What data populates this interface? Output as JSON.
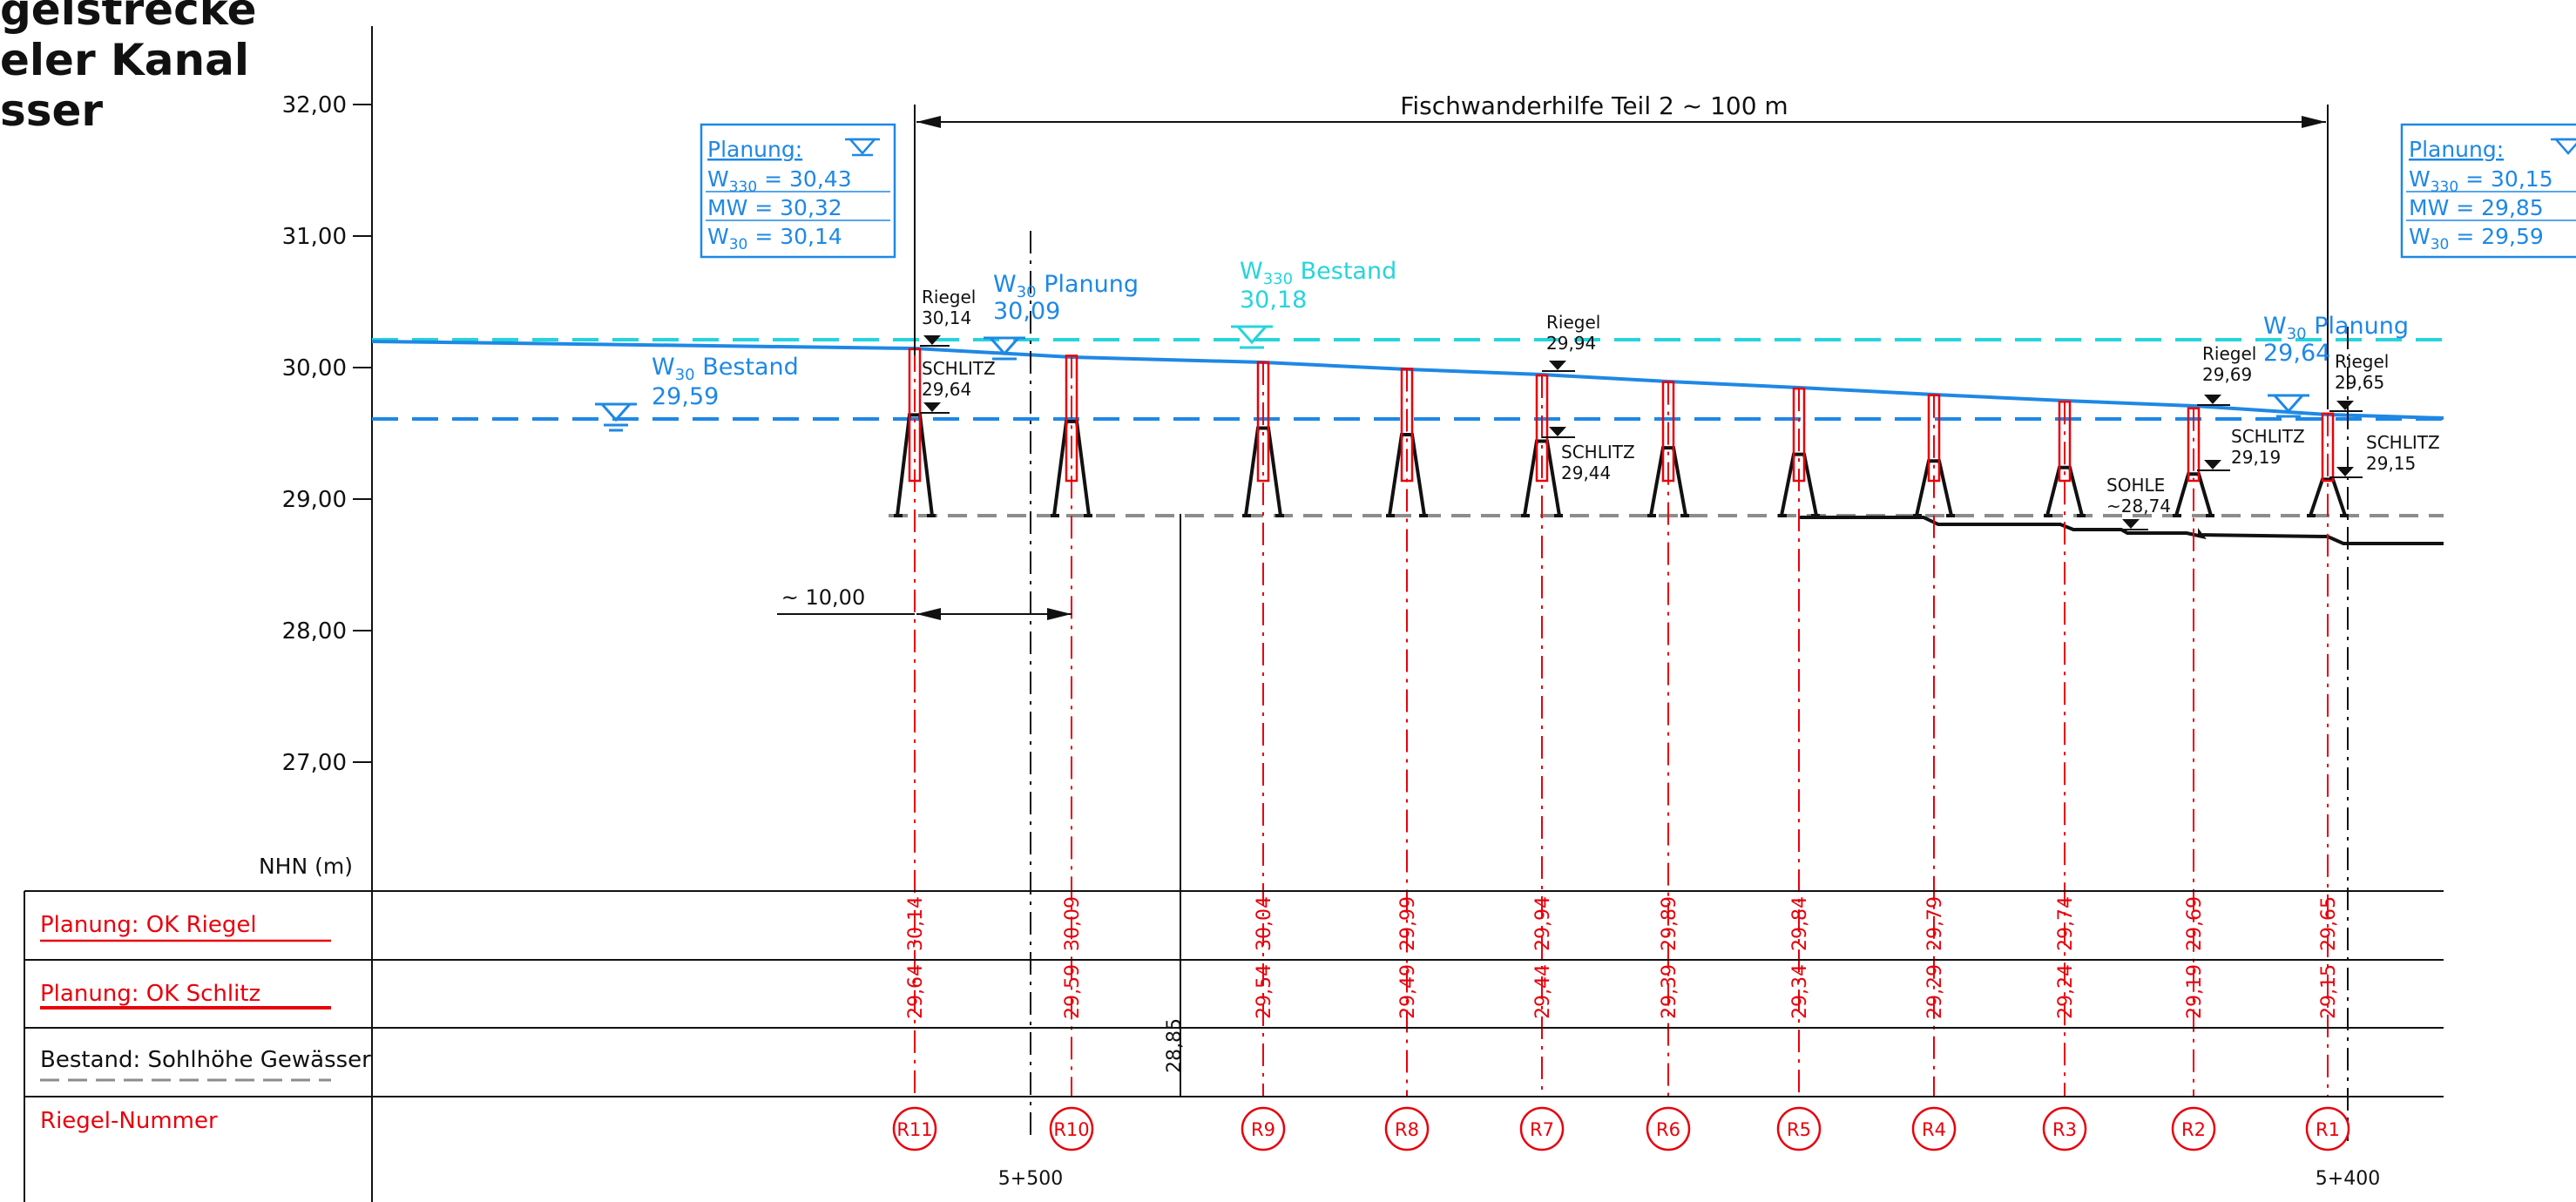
{
  "title": {
    "lines": [
      "gelstrecke",
      "eler Kanal",
      "sser"
    ]
  },
  "colors": {
    "blue": "#1E88E5",
    "cyan": "#26D4DC",
    "red": "#E8000B",
    "gray": "#8C8C8C",
    "black": "#111111"
  },
  "axis": {
    "label": "NHN (m)",
    "ticks": [
      "32,00",
      "31,00",
      "30,00",
      "29,00",
      "28,00",
      "27,00"
    ]
  },
  "overall": {
    "label": "Fischwanderhilfe Teil 2 ~ 100 m"
  },
  "spacing": {
    "label": "~ 10,00"
  },
  "stations": {
    "left": "5+500",
    "right": "5+400"
  },
  "planning_left": {
    "heading": "Planung:",
    "w330": {
      "main": "W",
      "sub": "330",
      "val": " = 30,43"
    },
    "mw": "MW = 30,32",
    "w30": {
      "main": "W",
      "sub": "30",
      "val": " = 30,14"
    }
  },
  "planning_right": {
    "heading": "Planung:",
    "w330": {
      "main": "W",
      "sub": "330",
      "val": " = 30,15"
    },
    "mw": "MW = 29,85",
    "w30": {
      "main": "W",
      "sub": "30",
      "val": " = 29,59"
    }
  },
  "water_labels": {
    "w30_bestand": {
      "main": "W",
      "sub": "30",
      "rest": " Bestand",
      "value": "29,59"
    },
    "w30_planung_left": {
      "main": "W",
      "sub": "30",
      "rest": " Planung",
      "value": "30,09"
    },
    "w330_bestand": {
      "main": "W",
      "sub": "330",
      "rest": " Bestand",
      "value": "30,18"
    },
    "w30_planung_right": {
      "main": "W",
      "sub": "30",
      "rest": " Planung",
      "value": "29,64"
    }
  },
  "callouts": {
    "riegel": "Riegel",
    "schlitz": "SCHLITZ",
    "sohle": "SOHLE",
    "r11_riegel": "30,14",
    "r11_schlitz": "29,64",
    "r7_riegel": "29,94",
    "r7_schlitz": "29,44",
    "r2_riegel": "29,69",
    "r2_schlitz": "29,19",
    "r1_riegel": "29,65",
    "r1_schlitz": "29,15",
    "sohle_value": "~28,74"
  },
  "table": {
    "rows": [
      {
        "label": "Planung: OK Riegel"
      },
      {
        "label": "Planung: OK Schlitz"
      },
      {
        "label": "Bestand: Sohlhöhe Gewässer"
      },
      {
        "label": "Riegel-Nummer"
      }
    ],
    "existing_bed": "28,85"
  },
  "chart_data": {
    "type": "line",
    "ylabel": "NHN (m)",
    "ylim": [
      26.0,
      32.5
    ],
    "categories": [
      "R11",
      "R10",
      "R9",
      "R8",
      "R7",
      "R6",
      "R5",
      "R4",
      "R3",
      "R2",
      "R1"
    ],
    "series": [
      {
        "name": "OK Riegel",
        "values": [
          "30,14",
          "30,09",
          "30,04",
          "29,99",
          "29,94",
          "29,89",
          "29,84",
          "29,79",
          "29,74",
          "29,69",
          "29,65"
        ]
      },
      {
        "name": "OK Schlitz",
        "values": [
          "29,64",
          "29,59",
          "29,54",
          "29,49",
          "29,44",
          "29,39",
          "29,34",
          "29,29",
          "29,24",
          "29,19",
          "29,15"
        ]
      }
    ]
  }
}
